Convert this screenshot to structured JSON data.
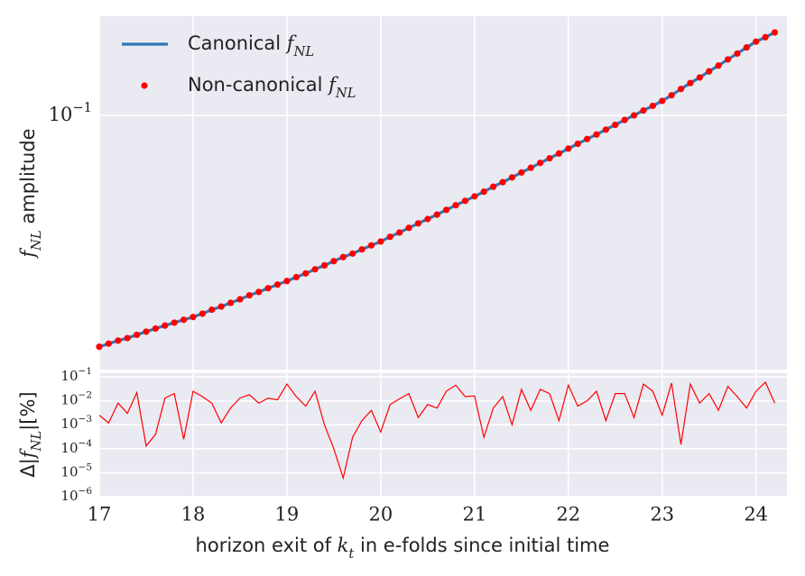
{
  "chart_data": [
    {
      "type": "line",
      "ylabel": "fNL amplitude",
      "ylog": true,
      "grid": true,
      "legend": "upper left",
      "xlim": [
        17,
        24.33
      ],
      "ylim": [
        0.01,
        0.2455
      ],
      "xticks": [
        17,
        18,
        19,
        20,
        21,
        22,
        23,
        24
      ],
      "yticks": [
        {
          "value": 0.1,
          "label": "10−1"
        }
      ],
      "x": [
        17.0,
        17.1,
        17.2,
        17.3,
        17.4,
        17.5,
        17.6,
        17.7,
        17.8,
        17.9,
        18.0,
        18.1,
        18.2,
        18.3,
        18.4,
        18.5,
        18.6,
        18.7,
        18.8,
        18.9,
        19.0,
        19.1,
        19.2,
        19.3,
        19.4,
        19.5,
        19.6,
        19.7,
        19.8,
        19.9,
        20.0,
        20.1,
        20.2,
        20.3,
        20.4,
        20.5,
        20.6,
        20.7,
        20.8,
        20.9,
        21.0,
        21.1,
        21.2,
        21.3,
        21.4,
        21.5,
        21.6,
        21.7,
        21.8,
        21.9,
        22.0,
        22.1,
        22.2,
        22.3,
        22.4,
        22.5,
        22.6,
        22.7,
        22.8,
        22.9,
        23.0,
        23.1,
        23.2,
        23.3,
        23.4,
        23.5,
        23.6,
        23.7,
        23.8,
        23.9,
        24.0,
        24.1,
        24.2
      ],
      "series": [
        {
          "name": "Canonical fNL",
          "style": "line",
          "color": "#2f78b5",
          "values": [
            0.0123,
            0.01265,
            0.013,
            0.0133,
            0.0137,
            0.0141,
            0.0145,
            0.0149,
            0.0153,
            0.0157,
            0.0161,
            0.0166,
            0.0172,
            0.0177,
            0.0183,
            0.0189,
            0.0196,
            0.0202,
            0.0209,
            0.0216,
            0.0223,
            0.0231,
            0.0239,
            0.0248,
            0.0257,
            0.0267,
            0.0277,
            0.0286,
            0.0297,
            0.0308,
            0.0319,
            0.0333,
            0.0346,
            0.0361,
            0.0376,
            0.0391,
            0.0407,
            0.0425,
            0.0443,
            0.0461,
            0.048,
            0.0501,
            0.0524,
            0.0546,
            0.057,
            0.0596,
            0.0622,
            0.065,
            0.0678,
            0.0708,
            0.074,
            0.0773,
            0.0807,
            0.0841,
            0.0879,
            0.0918,
            0.0959,
            0.1,
            0.1045,
            0.109,
            0.114,
            0.12,
            0.127,
            0.134,
            0.141,
            0.149,
            0.157,
            0.166,
            0.175,
            0.185,
            0.195,
            0.203,
            0.212
          ]
        },
        {
          "name": "Non-canonical fNL",
          "style": "scatter",
          "color": "#ff0000",
          "values": [
            0.0123,
            0.01265,
            0.013,
            0.0133,
            0.0137,
            0.0141,
            0.0145,
            0.0149,
            0.0153,
            0.0157,
            0.0161,
            0.0166,
            0.0172,
            0.0177,
            0.0183,
            0.0189,
            0.0196,
            0.0202,
            0.0209,
            0.0216,
            0.0223,
            0.0231,
            0.0239,
            0.0248,
            0.0257,
            0.0267,
            0.0277,
            0.0286,
            0.0297,
            0.0308,
            0.0319,
            0.0333,
            0.0346,
            0.0361,
            0.0376,
            0.0391,
            0.0407,
            0.0425,
            0.0443,
            0.0461,
            0.048,
            0.0501,
            0.0524,
            0.0546,
            0.057,
            0.0596,
            0.0622,
            0.065,
            0.0678,
            0.0708,
            0.074,
            0.0773,
            0.0807,
            0.0841,
            0.0879,
            0.0918,
            0.0959,
            0.1,
            0.1045,
            0.109,
            0.114,
            0.12,
            0.127,
            0.134,
            0.141,
            0.149,
            0.157,
            0.166,
            0.175,
            0.185,
            0.195,
            0.203,
            0.212
          ]
        }
      ]
    },
    {
      "type": "line",
      "ylabel": "Δ|fNL|[%]",
      "xlabel": "horizon exit of kt in e-folds since initial time",
      "ylog": true,
      "grid": true,
      "xlim": [
        17,
        24.33
      ],
      "ylim": [
        1e-06,
        0.142
      ],
      "xticks": [
        17,
        18,
        19,
        20,
        21,
        22,
        23,
        24
      ],
      "yticks": [
        {
          "value": 1e-06,
          "label": "10−6"
        },
        {
          "value": 1e-05,
          "label": "10−5"
        },
        {
          "value": 0.0001,
          "label": "10−4"
        },
        {
          "value": 0.001,
          "label": "10−3"
        },
        {
          "value": 0.01,
          "label": "10−2"
        },
        {
          "value": 0.1,
          "label": "10−1"
        }
      ],
      "x": [
        17.0,
        17.1,
        17.2,
        17.3,
        17.4,
        17.5,
        17.6,
        17.7,
        17.8,
        17.9,
        18.0,
        18.1,
        18.2,
        18.3,
        18.4,
        18.5,
        18.6,
        18.7,
        18.8,
        18.9,
        19.0,
        19.1,
        19.2,
        19.3,
        19.4,
        19.5,
        19.6,
        19.7,
        19.8,
        19.9,
        20.0,
        20.1,
        20.2,
        20.3,
        20.4,
        20.5,
        20.6,
        20.7,
        20.8,
        20.9,
        21.0,
        21.1,
        21.2,
        21.3,
        21.4,
        21.5,
        21.6,
        21.7,
        21.8,
        21.9,
        22.0,
        22.1,
        22.2,
        22.3,
        22.4,
        22.5,
        22.6,
        22.7,
        22.8,
        22.9,
        23.0,
        23.1,
        23.2,
        23.3,
        23.4,
        23.5,
        23.6,
        23.7,
        23.8,
        23.9,
        24.0,
        24.1,
        24.2
      ],
      "series": [
        {
          "style": "line",
          "color": "#ff0000",
          "values": [
            0.0025,
            0.0012,
            0.008,
            0.003,
            0.022,
            0.00013,
            0.0004,
            0.013,
            0.02,
            0.00025,
            0.025,
            0.015,
            0.008,
            0.0012,
            0.005,
            0.013,
            0.018,
            0.008,
            0.013,
            0.011,
            0.05,
            0.015,
            0.006,
            0.025,
            0.001,
            0.0001,
            6e-06,
            0.0003,
            0.0015,
            0.004,
            0.0005,
            0.007,
            0.012,
            0.02,
            0.002,
            0.007,
            0.005,
            0.025,
            0.045,
            0.015,
            0.016,
            0.0003,
            0.005,
            0.015,
            0.001,
            0.03,
            0.004,
            0.03,
            0.02,
            0.0015,
            0.045,
            0.006,
            0.01,
            0.025,
            0.0015,
            0.02,
            0.02,
            0.002,
            0.05,
            0.025,
            0.0025,
            0.055,
            0.00015,
            0.05,
            0.008,
            0.02,
            0.004,
            0.04,
            0.015,
            0.005,
            0.025,
            0.06,
            0.008
          ]
        }
      ]
    }
  ]
}
